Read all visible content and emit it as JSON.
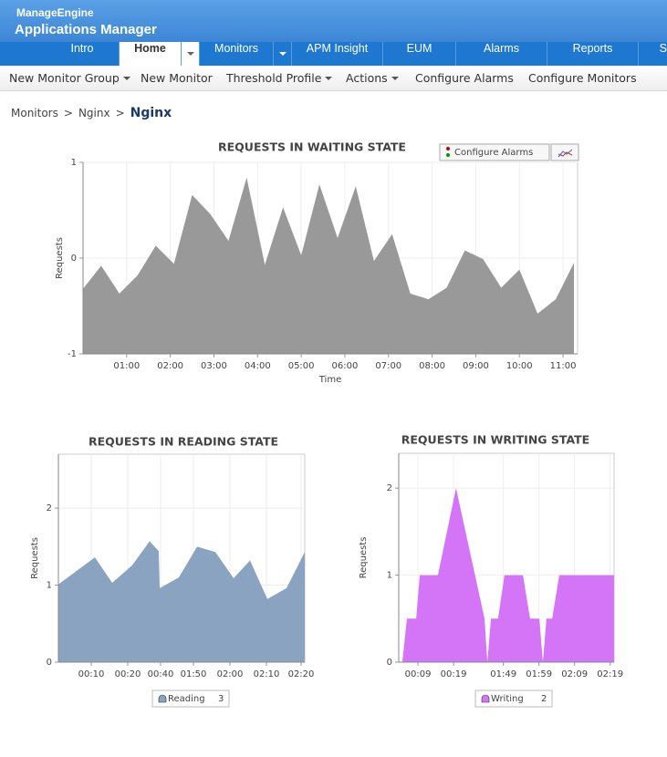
{
  "header": {
    "brand": "ManageEngine",
    "product": "Applications Manager"
  },
  "nav": [
    "Intro",
    "Home",
    "Monitors",
    "APM Insight",
    "EUM",
    "Alarms",
    "Reports",
    "S"
  ],
  "subnav": [
    "New Monitor Group",
    "New Monitor",
    "Threshold Profile",
    "Actions",
    "Configure Alarms",
    "Configure Monitors"
  ],
  "breadcrumb": {
    "items": [
      "Monitors",
      "Nginx",
      "Nginx"
    ],
    "separator": ">"
  },
  "chart_data": [
    {
      "type": "area",
      "title": "REQUESTS IN WAITING STATE",
      "x_label": "Time",
      "y_label": "Requests",
      "button": "Configure Alarms",
      "grid": true,
      "x": [
        0,
        25,
        50,
        75,
        100,
        125,
        150,
        175,
        200,
        225,
        250,
        275,
        300,
        325,
        350,
        375,
        400,
        425,
        450,
        475,
        500,
        525,
        550,
        575,
        600,
        625,
        650,
        675
      ],
      "series": [
        {
          "color": "#999999",
          "values": [
            -0.32,
            -0.08,
            -0.37,
            -0.18,
            0.13,
            -0.06,
            0.66,
            0.46,
            0.18,
            0.84,
            -0.07,
            0.53,
            0.03,
            0.77,
            0.21,
            0.75,
            -0.03,
            0.25,
            -0.37,
            -0.43,
            -0.31,
            0.08,
            -0.01,
            -0.31,
            -0.12,
            -0.58,
            -0.43,
            -0.05
          ]
        }
      ],
      "xlim": [
        0,
        680
      ],
      "xticks": [
        {
          "value": 60,
          "label": "01:00"
        },
        {
          "value": 120,
          "label": "02:00"
        },
        {
          "value": 180,
          "label": "03:00"
        },
        {
          "value": 240,
          "label": "04:00"
        },
        {
          "value": 300,
          "label": "05:00"
        },
        {
          "value": 360,
          "label": "06:00"
        },
        {
          "value": 420,
          "label": "07:00"
        },
        {
          "value": 480,
          "label": "08:00"
        },
        {
          "value": 540,
          "label": "09:00"
        },
        {
          "value": 600,
          "label": "10:00"
        },
        {
          "value": 660,
          "label": "11:00"
        }
      ],
      "ylim": [
        -1,
        1
      ],
      "yticks": [
        -1,
        0,
        1
      ]
    },
    {
      "type": "area",
      "title": "REQUESTS IN READING STATE",
      "y_label": "Requests",
      "grid": true,
      "x": [
        0,
        10,
        14.75,
        20.25,
        25,
        27.5,
        27.75,
        33,
        38,
        43,
        48,
        52.5,
        57.25,
        62.5,
        67.5
      ],
      "series": [
        {
          "name": "Reading",
          "legend_count": 3,
          "color": "#8aa3c0",
          "values": [
            1.01,
            1.36,
            1.03,
            1.26,
            1.57,
            1.44,
            0.96,
            1.1,
            1.5,
            1.43,
            1.09,
            1.32,
            0.82,
            0.96,
            1.43
          ]
        }
      ],
      "xlim": [
        0,
        67.5
      ],
      "xticks": [
        {
          "value": 9,
          "label": "00:10"
        },
        {
          "value": 19,
          "label": "00:20"
        },
        {
          "value": 28,
          "label": "00:40"
        },
        {
          "value": 37,
          "label": "01:50"
        },
        {
          "value": 47,
          "label": "02:00"
        },
        {
          "value": 57,
          "label": "02:10"
        },
        {
          "value": 66.5,
          "label": "02:20"
        }
      ],
      "ylim": [
        0,
        2.7
      ],
      "yticks": [
        0,
        1,
        2
      ]
    },
    {
      "type": "area",
      "title": "REQUESTS IN WRITING STATE",
      "y_label": "Requests",
      "grid": true,
      "x": [
        4.6,
        5.9,
        8.5,
        9.5,
        14.6,
        19.7,
        27.7,
        28.5,
        29.5,
        31.5,
        33.3,
        38.5,
        40.5,
        43.1,
        44.1,
        45.1,
        46.7,
        48.7,
        64.1
      ],
      "series": [
        {
          "name": "Writing",
          "legend_count": 2,
          "color": "#d475f7",
          "values": [
            0,
            0.5,
            0.5,
            1,
            1,
            2,
            0.5,
            0,
            0.5,
            0.5,
            1,
            1,
            0.5,
            0.5,
            0,
            0.5,
            0.5,
            1,
            1
          ]
        }
      ],
      "xlim": [
        3.6,
        64.1
      ],
      "xticks": [
        {
          "value": 9,
          "label": "00:09"
        },
        {
          "value": 19,
          "label": "00:19"
        },
        {
          "value": 33,
          "label": "01:49"
        },
        {
          "value": 43,
          "label": "01:59"
        },
        {
          "value": 53,
          "label": "02:09"
        },
        {
          "value": 63,
          "label": "02:19"
        }
      ],
      "ylim": [
        0,
        2.4
      ],
      "yticks": [
        0,
        1,
        2
      ]
    }
  ]
}
